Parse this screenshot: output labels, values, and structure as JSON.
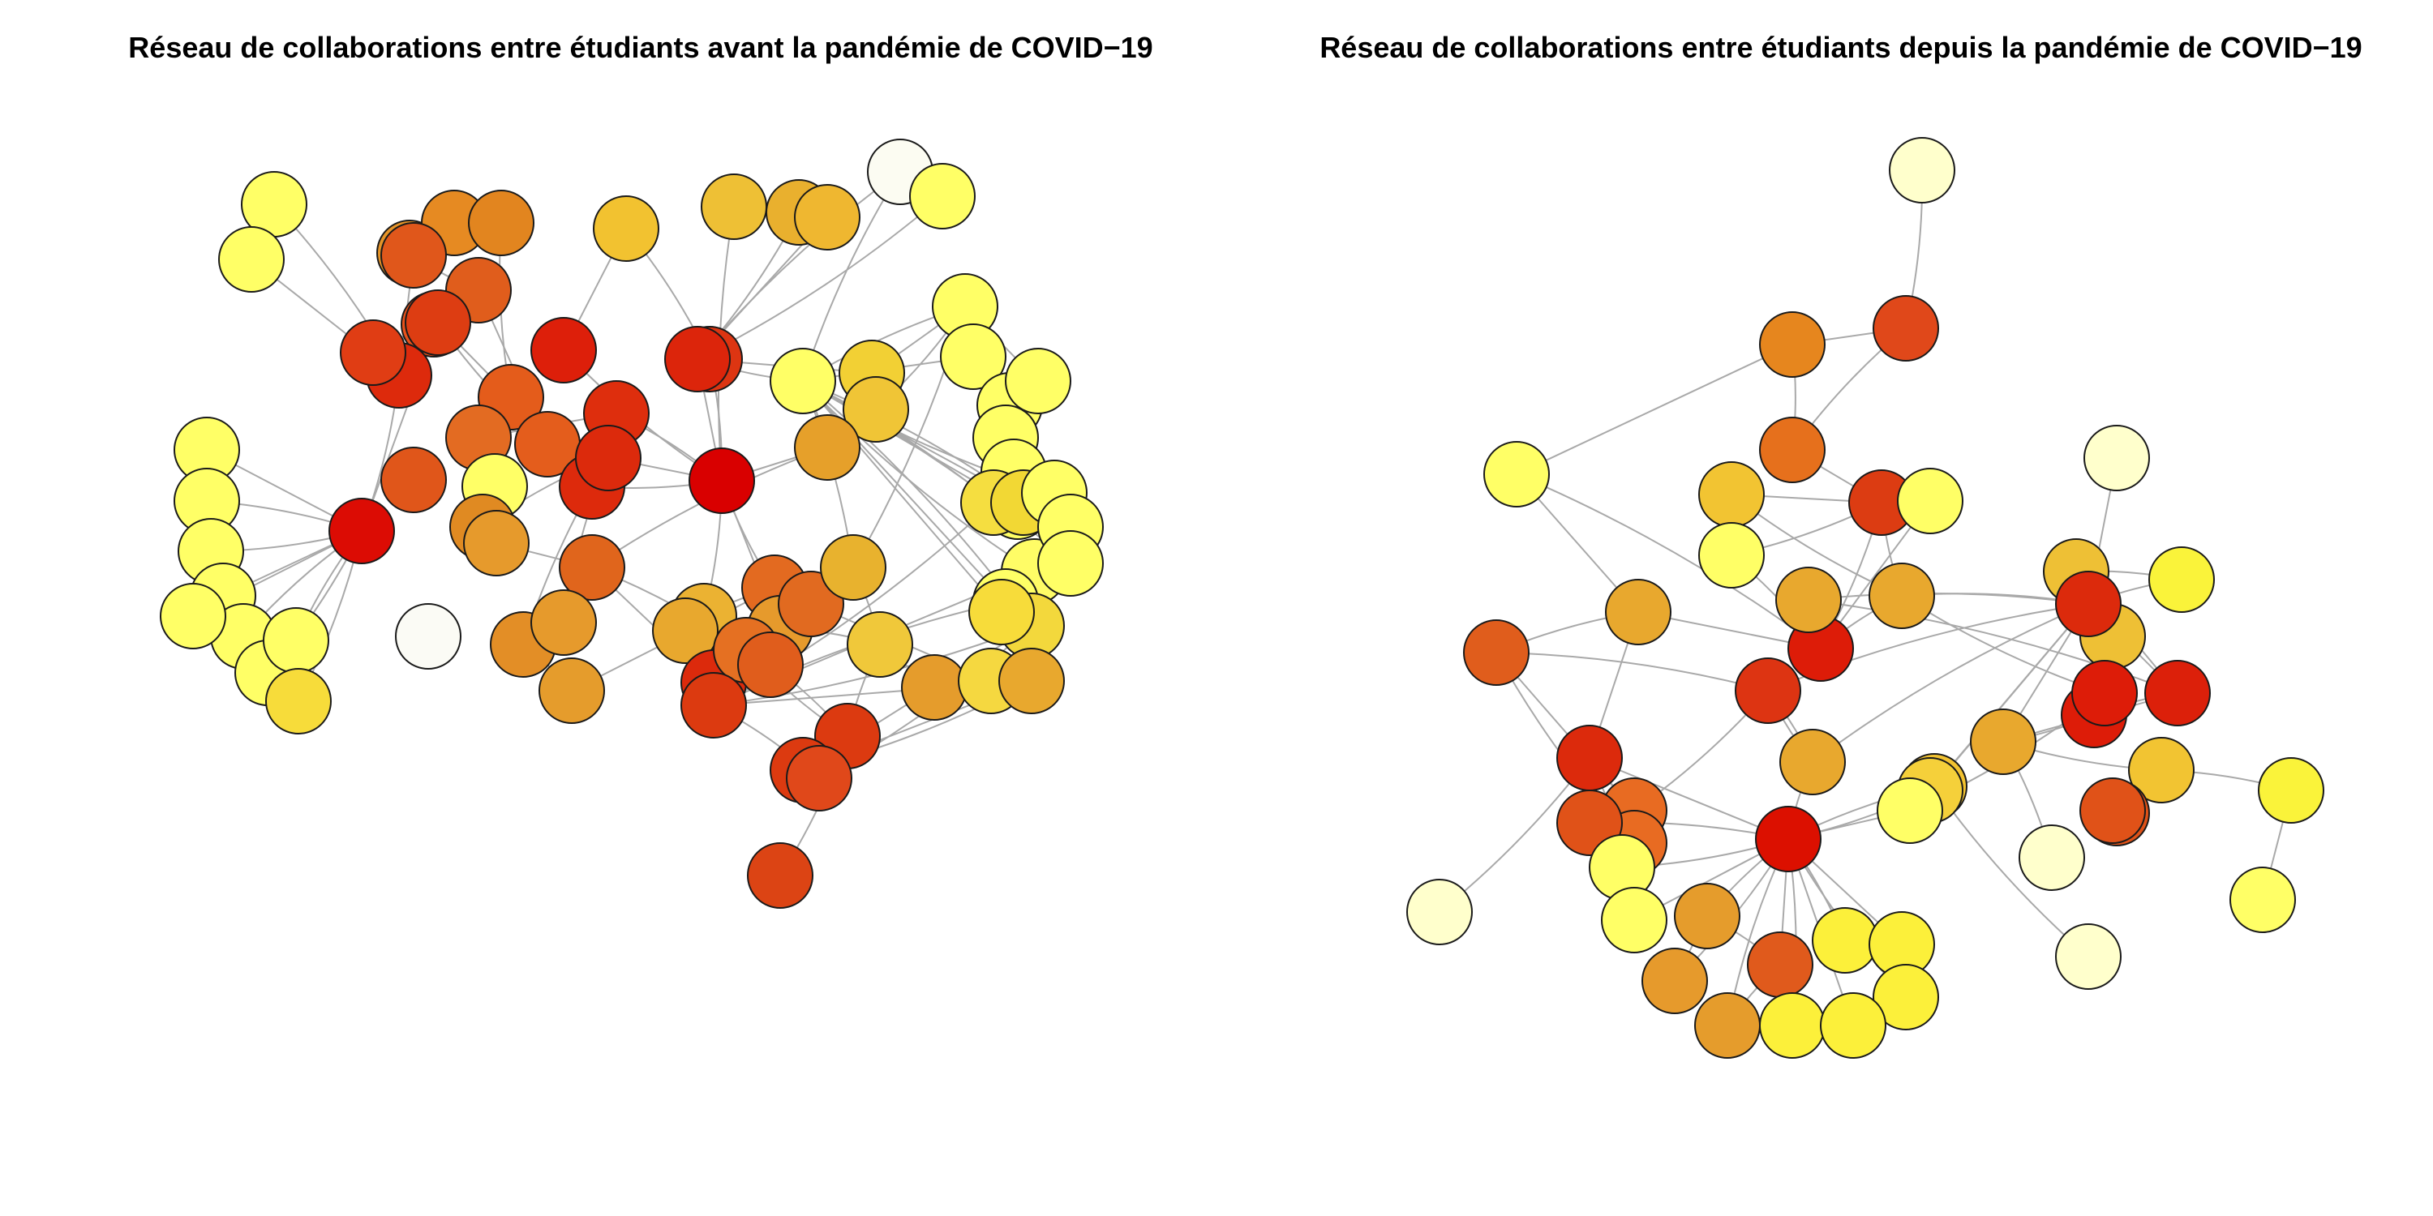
{
  "panels": [
    {
      "title": "Réseau de collaborations entre étudiants avant la pandémie de COVID−19",
      "nodes": [
        {
          "c": "#ffff66"
        },
        {
          "c": "#ffff66"
        },
        {
          "c": "#e69428"
        },
        {
          "c": "#e68a22"
        },
        {
          "c": "#e2851f"
        },
        {
          "c": "#f2c230"
        },
        {
          "c": "#eec035"
        },
        {
          "c": "#e9b02e"
        },
        {
          "c": "#efb730"
        },
        {
          "c": "#fcfcf2"
        },
        {
          "c": "#ffff66"
        },
        {
          "c": "#e0571b"
        },
        {
          "c": "#e05d1c"
        },
        {
          "c": "#e8521b"
        },
        {
          "c": "#dd2a0c"
        },
        {
          "c": "#e03d14"
        },
        {
          "c": "#dd3d12"
        },
        {
          "c": "#dd1f0a"
        },
        {
          "c": "#dd3512"
        },
        {
          "c": "#dc250b"
        },
        {
          "c": "#ffff66"
        },
        {
          "c": "#f2d034"
        },
        {
          "c": "#f0c536"
        },
        {
          "c": "#ffff66"
        },
        {
          "c": "#ffff66"
        },
        {
          "c": "#e45c1b"
        },
        {
          "c": "#e36b22"
        },
        {
          "c": "#e45d1c"
        },
        {
          "c": "#de2e0d"
        },
        {
          "c": "#dd2a0c"
        },
        {
          "c": "#ffff66"
        },
        {
          "c": "#e6a02a"
        },
        {
          "c": "#d90000"
        },
        {
          "c": "#e0561a"
        },
        {
          "c": "#dc0c04"
        },
        {
          "c": "#ffff66"
        },
        {
          "c": "#ffff66"
        },
        {
          "c": "#ffff66"
        },
        {
          "c": "#ffff66"
        },
        {
          "c": "#ffff66"
        },
        {
          "c": "#ffff66"
        },
        {
          "c": "#dc2a0c"
        },
        {
          "c": "#e08a22"
        },
        {
          "c": "#e69a2c"
        },
        {
          "c": "#e0651c"
        },
        {
          "c": "#ffff66"
        },
        {
          "c": "#ffff66"
        },
        {
          "c": "#ffff66"
        },
        {
          "c": "#ffff66"
        },
        {
          "c": "#fbfbf5"
        },
        {
          "c": "#e38e26"
        },
        {
          "c": "#e69a2c"
        },
        {
          "c": "#e59c2c"
        },
        {
          "c": "#e36a20"
        },
        {
          "c": "#e69a2c"
        },
        {
          "c": "#ebb232"
        },
        {
          "c": "#e8a82e"
        },
        {
          "c": "#dc2a0c"
        },
        {
          "c": "#e57022"
        },
        {
          "c": "#e05d1c"
        },
        {
          "c": "#e16a20"
        },
        {
          "c": "#e8b22e"
        },
        {
          "c": "#f0c83a"
        },
        {
          "c": "#e59c2c"
        },
        {
          "c": "#f5d840"
        },
        {
          "c": "#dc3a10"
        },
        {
          "c": "#dc3a10"
        },
        {
          "c": "#e0481a"
        },
        {
          "c": "#dc3a10"
        },
        {
          "c": "#ffff66"
        },
        {
          "c": "#f5de40"
        },
        {
          "c": "#fffc66"
        },
        {
          "c": "#ffff66"
        },
        {
          "c": "#f3d83c"
        },
        {
          "c": "#e8a82e"
        },
        {
          "c": "#dc4414"
        },
        {
          "c": "#f2d834"
        },
        {
          "c": "#ffff66"
        },
        {
          "c": "#ffff66"
        },
        {
          "c": "#ffff66"
        },
        {
          "c": "#ffff66"
        },
        {
          "c": "#ffff66"
        },
        {
          "c": "#f7dc3a"
        },
        {
          "c": "#f7dc3a"
        }
      ]
    },
    {
      "title": "Réseau de collaborations entre étudiants depuis la pandémie de COVID−19",
      "nodes": [
        {
          "c": "#ffffcc"
        },
        {
          "c": "#e0481a"
        },
        {
          "c": "#e6861e"
        },
        {
          "c": "#e6701c"
        },
        {
          "c": "#f2c432"
        },
        {
          "c": "#ffff66"
        },
        {
          "c": "#dc3c12"
        },
        {
          "c": "#ffff66"
        },
        {
          "c": "#ffffcc"
        },
        {
          "c": "#faf33a"
        },
        {
          "c": "#eec035"
        },
        {
          "c": "#e8a82e"
        },
        {
          "c": "#ffff66"
        },
        {
          "c": "#eec035"
        },
        {
          "c": "#dc2a0c"
        },
        {
          "c": "#dd1c08"
        },
        {
          "c": "#e8a82e"
        },
        {
          "c": "#e05d1c"
        },
        {
          "c": "#dd3412"
        },
        {
          "c": "#e8a82e"
        },
        {
          "c": "#dd1c08"
        },
        {
          "c": "#dc200a"
        },
        {
          "c": "#e8a82e"
        },
        {
          "c": "#f2c230"
        },
        {
          "c": "#e8a82e"
        },
        {
          "c": "#f2c432"
        },
        {
          "c": "#dc1000"
        },
        {
          "c": "#f5d03a"
        },
        {
          "c": "#ffffcc"
        },
        {
          "c": "#e86b22"
        },
        {
          "c": "#e86b22"
        },
        {
          "c": "#dc2a0c"
        },
        {
          "c": "#e05218"
        },
        {
          "c": "#ffffcc"
        },
        {
          "c": "#ffff66"
        },
        {
          "c": "#ffff66"
        },
        {
          "c": "#e59c2c"
        },
        {
          "c": "#e69a2c"
        },
        {
          "c": "#e05a1c"
        },
        {
          "c": "#e59c2c"
        },
        {
          "c": "#fcf03a"
        },
        {
          "c": "#fcf03a"
        },
        {
          "c": "#fcf03a"
        },
        {
          "c": "#fcf03a"
        },
        {
          "c": "#fcf03a"
        },
        {
          "c": "#ffffcc"
        },
        {
          "c": "#e05218"
        },
        {
          "c": "#e05218"
        },
        {
          "c": "#faf33a"
        },
        {
          "c": "#ffff66"
        },
        {
          "c": "#dd1c08"
        },
        {
          "c": "#ffff66"
        }
      ]
    }
  ]
}
